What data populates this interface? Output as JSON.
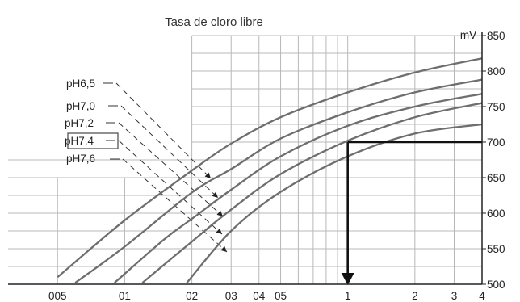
{
  "chart_data": {
    "type": "line",
    "title": "Tasa de cloro libre",
    "xlabel": "",
    "ylabel": "mV",
    "x_scale": "log",
    "xlim": [
      0.03,
      4
    ],
    "ylim": [
      500,
      850
    ],
    "x_tick_labels": [
      "005",
      "01",
      "02",
      "03",
      "04",
      "05",
      "1",
      "2",
      "3",
      "4"
    ],
    "x_tick_values": [
      0.05,
      0.1,
      0.2,
      0.3,
      0.4,
      0.5,
      1,
      2,
      3,
      4
    ],
    "y_ticks": [
      500,
      550,
      600,
      650,
      700,
      750,
      800,
      850
    ],
    "grid": true,
    "legend_position": "left",
    "series": [
      {
        "name": "pH6,5",
        "x": [
          0.05,
          0.1,
          0.2,
          0.3,
          0.5,
          1,
          2,
          4
        ],
        "y": [
          510,
          590,
          660,
          698,
          735,
          770,
          798,
          818
        ]
      },
      {
        "name": "pH7,0",
        "x": [
          0.06,
          0.1,
          0.2,
          0.3,
          0.5,
          1,
          2,
          4
        ],
        "y": [
          502,
          553,
          629,
          662,
          705,
          742,
          770,
          788
        ]
      },
      {
        "name": "pH7,2",
        "x": [
          0.09,
          0.15,
          0.2,
          0.3,
          0.5,
          1,
          2,
          4
        ],
        "y": [
          502,
          563,
          592,
          633,
          680,
          723,
          750,
          768
        ]
      },
      {
        "name": "pH7,4",
        "x": [
          0.12,
          0.2,
          0.3,
          0.5,
          1,
          2,
          4
        ],
        "y": [
          502,
          560,
          605,
          655,
          702,
          735,
          755
        ]
      },
      {
        "name": "pH7,6",
        "x": [
          0.19,
          0.3,
          0.5,
          1,
          2,
          4
        ],
        "y": [
          502,
          575,
          630,
          680,
          712,
          725
        ]
      }
    ],
    "highlighted_series": "pH7,4",
    "annotations": [
      {
        "type": "horizontal_line",
        "y": 700,
        "x_from": 1,
        "x_to": 4
      },
      {
        "type": "vertical_arrow",
        "x": 1,
        "y_from": 700,
        "y_to": 500
      }
    ]
  }
}
